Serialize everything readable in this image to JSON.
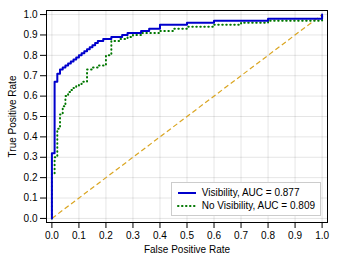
{
  "chart_data": {
    "type": "line",
    "xlabel": "False Positive Rate",
    "ylabel": "True Positive Rate",
    "xlim": [
      -0.02,
      1.02
    ],
    "ylim": [
      -0.02,
      1.02
    ],
    "xticks": [
      {
        "value": 0.0,
        "label": "0.0"
      },
      0.1,
      0.2,
      0.3,
      0.4,
      0.5,
      0.6,
      0.7,
      0.8,
      0.9,
      {
        "value": 1.0,
        "label": "1.0"
      }
    ],
    "yticks": [
      {
        "value": 0.0,
        "label": "0.0"
      },
      0.1,
      0.2,
      0.3,
      0.4,
      0.5,
      0.6,
      0.7,
      0.8,
      0.9,
      {
        "value": 1.0,
        "label": "1.0"
      }
    ],
    "series": [
      {
        "name": "Visibility, AUC = 0.877",
        "color": "#0000cc",
        "line_style": "solid",
        "x": [
          0.0,
          0.0,
          0.0,
          0.0,
          0.01,
          0.01,
          0.01,
          0.02,
          0.02,
          0.02,
          0.03,
          0.03,
          0.03,
          0.04,
          0.04,
          0.05,
          0.05,
          0.06,
          0.06,
          0.07,
          0.07,
          0.08,
          0.08,
          0.09,
          0.09,
          0.1,
          0.11,
          0.12,
          0.13,
          0.14,
          0.15,
          0.16,
          0.17,
          0.18,
          0.19,
          0.2,
          0.21,
          0.22,
          0.24,
          0.26,
          0.28,
          0.3,
          0.33,
          0.36,
          0.4,
          0.45,
          0.5,
          0.55,
          0.6,
          0.65,
          0.7,
          0.8,
          0.9,
          1.0
        ],
        "values": [
          0.0,
          0.1,
          0.3,
          0.32,
          0.35,
          0.62,
          0.67,
          0.68,
          0.7,
          0.71,
          0.72,
          0.73,
          0.73,
          0.74,
          0.74,
          0.75,
          0.75,
          0.76,
          0.76,
          0.77,
          0.77,
          0.77,
          0.78,
          0.78,
          0.79,
          0.8,
          0.81,
          0.82,
          0.83,
          0.84,
          0.85,
          0.86,
          0.87,
          0.87,
          0.88,
          0.88,
          0.88,
          0.89,
          0.89,
          0.9,
          0.91,
          0.91,
          0.92,
          0.93,
          0.95,
          0.95,
          0.96,
          0.96,
          0.97,
          0.97,
          0.97,
          0.98,
          0.98,
          1.0
        ]
      },
      {
        "name": "No Visibility, AUC = 0.809",
        "color": "#007700",
        "line_style": "dotted",
        "x": [
          0.0,
          0.0,
          0.01,
          0.01,
          0.02,
          0.02,
          0.03,
          0.04,
          0.05,
          0.06,
          0.07,
          0.08,
          0.09,
          0.1,
          0.11,
          0.13,
          0.15,
          0.17,
          0.2,
          0.22,
          0.25,
          0.28,
          0.3,
          0.33,
          0.36,
          0.4,
          0.45,
          0.5,
          0.55,
          0.6,
          0.65,
          0.7,
          0.75,
          0.8,
          0.9,
          1.0
        ],
        "values": [
          0.0,
          0.22,
          0.22,
          0.3,
          0.38,
          0.44,
          0.51,
          0.55,
          0.6,
          0.62,
          0.63,
          0.64,
          0.65,
          0.66,
          0.67,
          0.73,
          0.74,
          0.75,
          0.8,
          0.87,
          0.88,
          0.89,
          0.9,
          0.91,
          0.91,
          0.92,
          0.93,
          0.94,
          0.94,
          0.95,
          0.95,
          0.96,
          0.96,
          0.97,
          0.97,
          1.0
        ]
      },
      {
        "color": "#daa520",
        "line_style": "dashed",
        "x": [
          0,
          1
        ],
        "values": [
          0,
          1
        ]
      }
    ],
    "grid": true,
    "legend": "lower right"
  }
}
